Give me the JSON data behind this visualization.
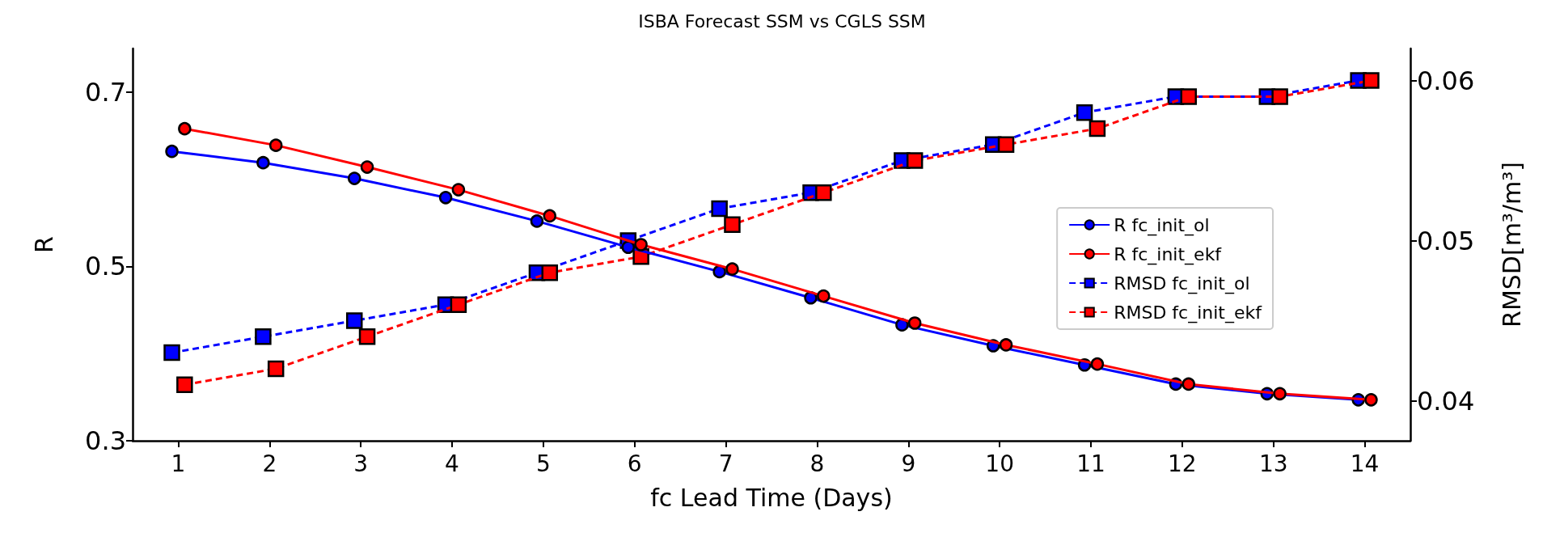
{
  "chart_data": {
    "type": "line",
    "title": "ISBA Forecast SSM vs CGLS SSM",
    "xlabel": "fc Lead Time (Days)",
    "ylabel": "R",
    "y2label": "RMSD[m³/m³]",
    "xlim": [
      0.5,
      14.5
    ],
    "xticks": [
      1,
      2,
      3,
      4,
      5,
      6,
      7,
      8,
      9,
      10,
      11,
      12,
      13,
      14
    ],
    "ylim": [
      0.3,
      0.75
    ],
    "yticks": [
      0.3,
      0.5,
      0.7
    ],
    "y2lim": [
      0.0375,
      0.062
    ],
    "y2ticks": [
      0.04,
      0.05,
      0.06
    ],
    "grid": false,
    "legend": "right",
    "series": [
      {
        "name": "R fc_init_ol",
        "color": "#0000ff",
        "marker": "circle",
        "line_style": "solid",
        "x": [
          0.93,
          1.93,
          2.93,
          3.93,
          4.93,
          5.93,
          6.93,
          7.93,
          8.93,
          9.93,
          10.93,
          11.93,
          12.93,
          13.93
        ],
        "values": [
          0.632,
          0.619,
          0.601,
          0.579,
          0.552,
          0.522,
          0.494,
          0.464,
          0.433,
          0.409,
          0.387,
          0.365,
          0.354,
          0.347
        ]
      },
      {
        "name": "R fc_init_ekf",
        "color": "#ff0000",
        "marker": "circle",
        "line_style": "solid",
        "x": [
          1.07,
          2.07,
          3.07,
          4.07,
          5.07,
          6.07,
          7.07,
          8.07,
          9.07,
          10.07,
          11.07,
          12.07,
          13.07,
          14.07
        ],
        "values": [
          0.658,
          0.639,
          0.614,
          0.588,
          0.558,
          0.525,
          0.497,
          0.466,
          0.435,
          0.41,
          0.388,
          0.365,
          0.354,
          0.347
        ]
      },
      {
        "name": "RMSD fc_init_ol",
        "color": "#0000ff",
        "marker": "square",
        "line_style": "dashed",
        "axis": "y2",
        "x": [
          0.93,
          1.93,
          2.93,
          3.93,
          4.93,
          5.93,
          6.93,
          7.93,
          8.93,
          9.93,
          10.93,
          11.93,
          12.93,
          13.93
        ],
        "values": [
          0.043,
          0.044,
          0.045,
          0.046,
          0.048,
          0.05,
          0.052,
          0.053,
          0.055,
          0.056,
          0.058,
          0.059,
          0.059,
          0.06
        ]
      },
      {
        "name": "RMSD fc_init_ekf",
        "color": "#ff0000",
        "marker": "square",
        "line_style": "dashed",
        "axis": "y2",
        "x": [
          1.07,
          2.07,
          3.07,
          4.07,
          5.07,
          6.07,
          7.07,
          8.07,
          9.07,
          10.07,
          11.07,
          12.07,
          13.07,
          14.07
        ],
        "values": [
          0.041,
          0.042,
          0.044,
          0.046,
          0.048,
          0.049,
          0.051,
          0.053,
          0.055,
          0.056,
          0.057,
          0.059,
          0.059,
          0.06
        ]
      }
    ]
  }
}
